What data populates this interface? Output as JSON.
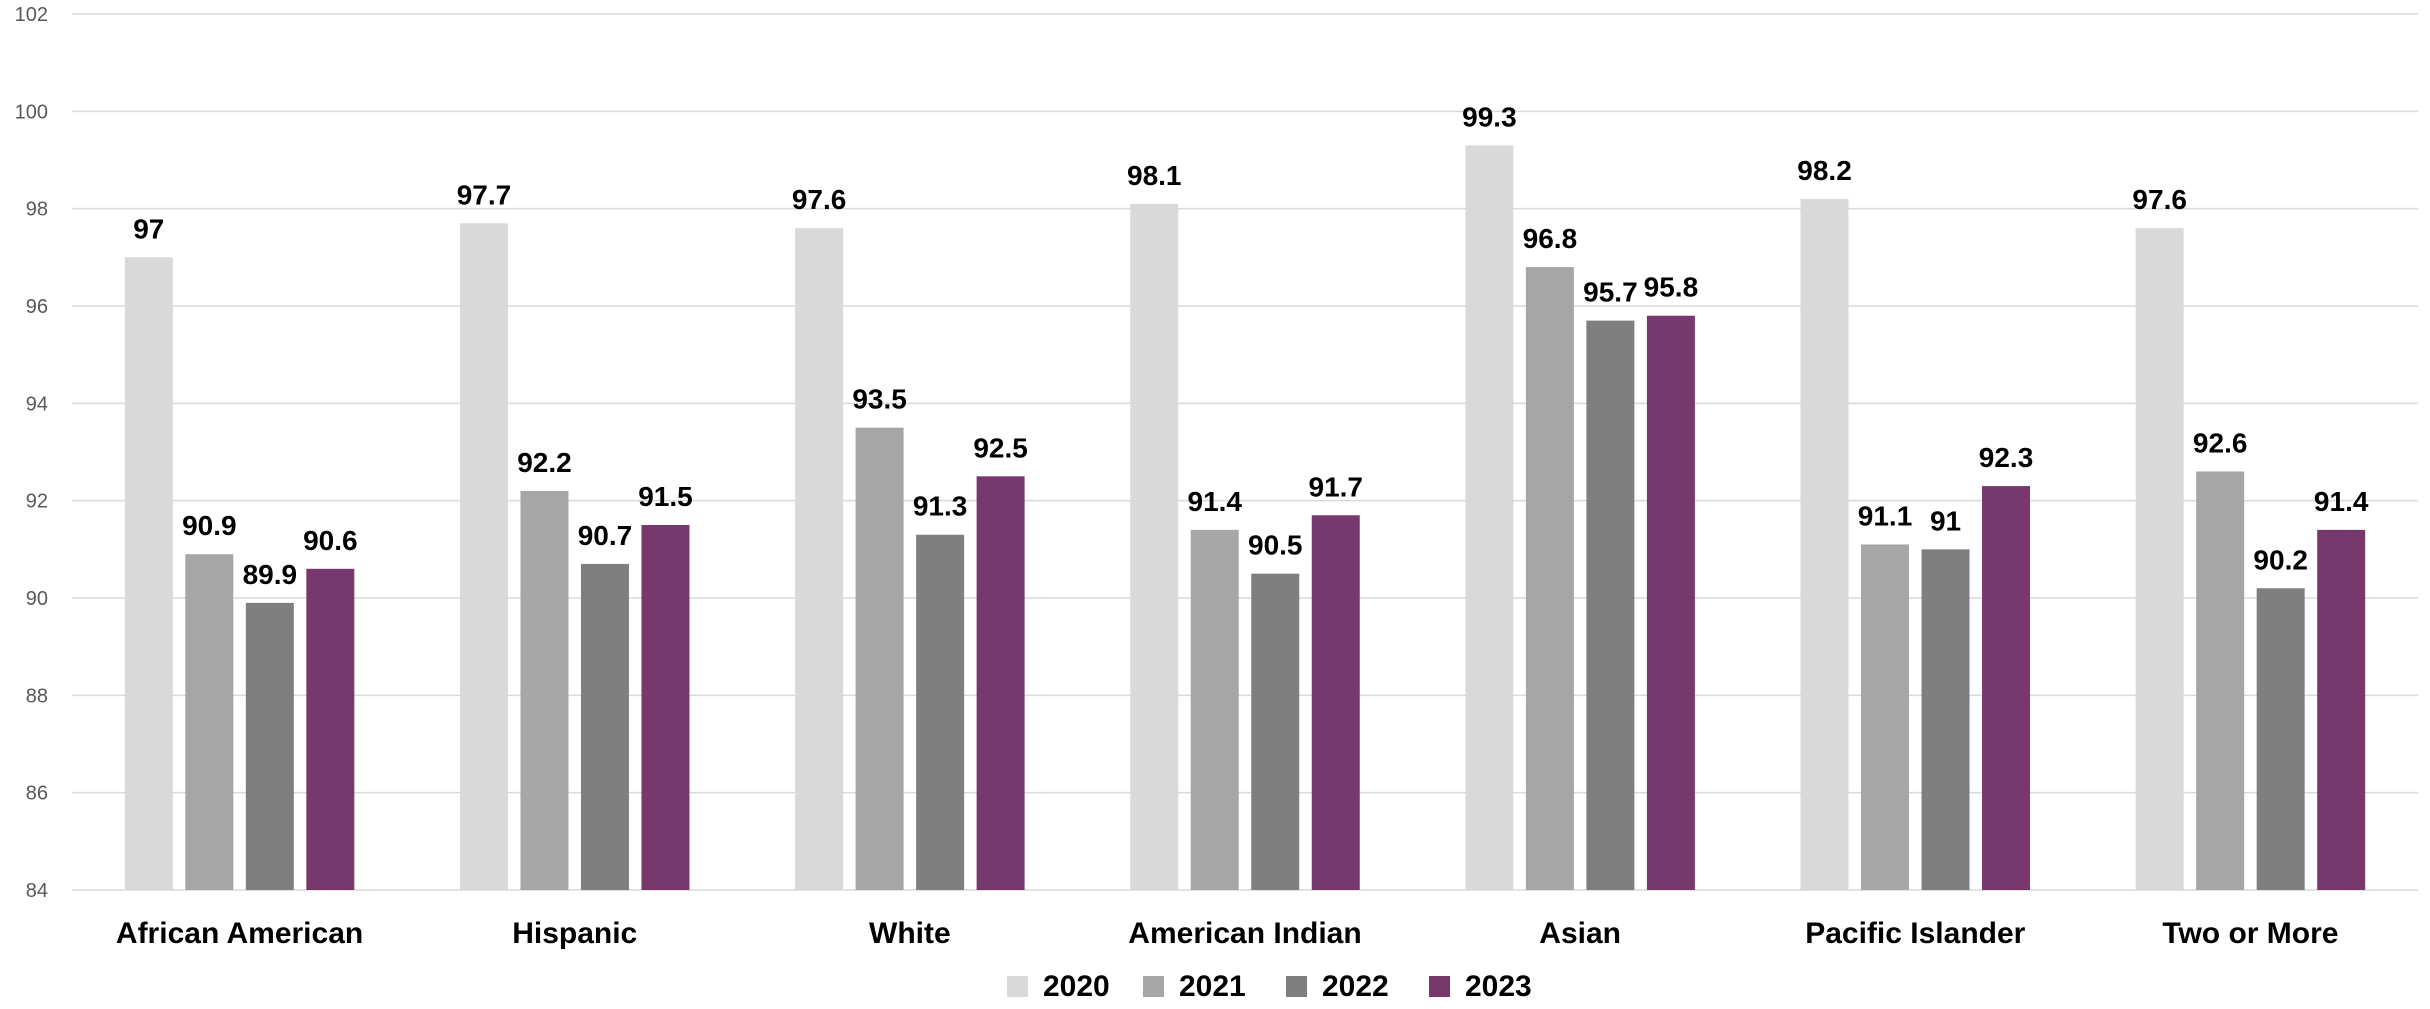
{
  "chart_data": {
    "type": "bar",
    "title": "",
    "xlabel": "",
    "ylabel": "",
    "categories": [
      "African American",
      "Hispanic",
      "White",
      "American Indian",
      "Asian",
      "Pacific Islander",
      "Two or More"
    ],
    "series": [
      {
        "name": "2020",
        "color": "#d9d9d9",
        "values": [
          97,
          97.7,
          97.6,
          98.1,
          99.3,
          98.2,
          97.6
        ]
      },
      {
        "name": "2021",
        "color": "#a6a6a6",
        "values": [
          90.9,
          92.2,
          93.5,
          91.4,
          96.8,
          91.1,
          92.6
        ]
      },
      {
        "name": "2022",
        "color": "#7f7f7f",
        "values": [
          89.9,
          90.7,
          91.3,
          90.5,
          95.7,
          91,
          90.2
        ]
      },
      {
        "name": "2023",
        "color": "#77386e",
        "values": [
          90.6,
          91.5,
          92.5,
          91.7,
          95.8,
          92.3,
          91.4
        ]
      }
    ],
    "ylim": [
      84,
      102
    ],
    "yticks": [
      84,
      86,
      88,
      90,
      92,
      94,
      96,
      98,
      100,
      102
    ],
    "grid": true,
    "legend_position": "bottom",
    "data_labels": true
  }
}
